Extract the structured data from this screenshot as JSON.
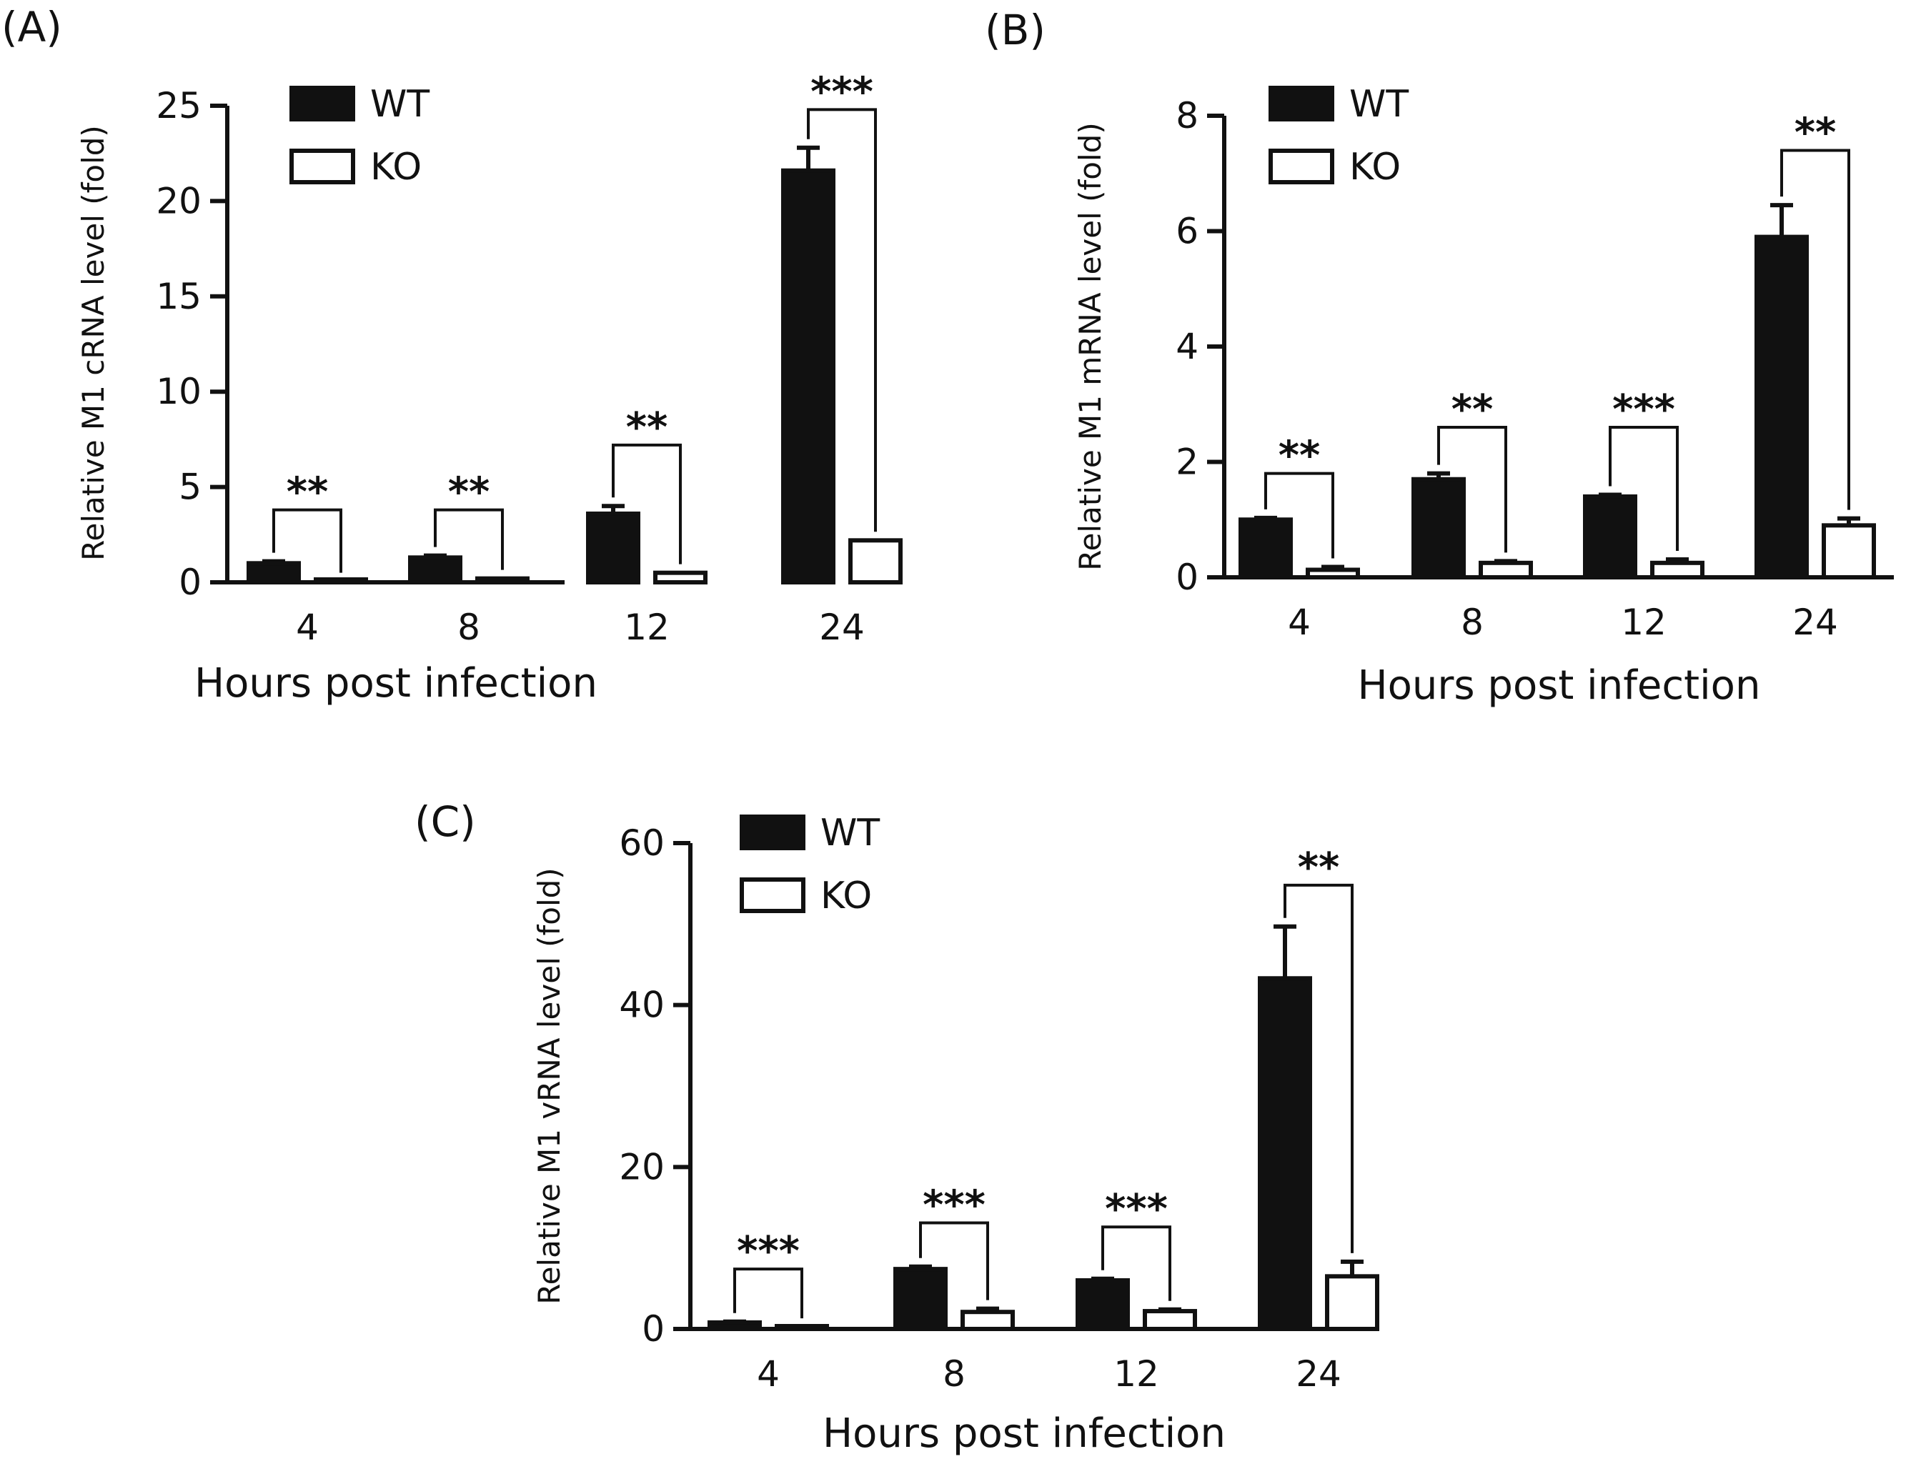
{
  "chart_data": [
    {
      "panel": "(A)",
      "type": "bar",
      "categories": [
        "4",
        "8",
        "12",
        "24"
      ],
      "xlabel": "Hours post infection",
      "ylabel": "Relative M1 cRNA level (fold)",
      "ylim": [
        0,
        25
      ],
      "yticks": [
        "0",
        "5",
        "10",
        "15",
        "20",
        "25"
      ],
      "legend_position": "top-left",
      "series": [
        {
          "name": "WT",
          "values": [
            1.0,
            1.3,
            3.6,
            21.6
          ],
          "errors": [
            0.1,
            0.1,
            0.4,
            1.2
          ],
          "color": "#111111"
        },
        {
          "name": "KO",
          "values": [
            0.05,
            0.2,
            0.5,
            2.2
          ],
          "errors": [
            0.0,
            0.0,
            0.0,
            0.0
          ],
          "color": "#ffffff"
        }
      ],
      "significance": [
        "**",
        "**",
        "**",
        "***"
      ],
      "bracket_heights": [
        3.8,
        3.8,
        7.2,
        24.8
      ]
    },
    {
      "panel": "(B)",
      "type": "bar",
      "categories": [
        "4",
        "8",
        "12",
        "24"
      ],
      "xlabel": "Hours post infection",
      "ylabel": "Relative M1 mRNA level (fold)",
      "ylim": [
        0,
        8
      ],
      "yticks": [
        "0",
        "2",
        "4",
        "6",
        "8"
      ],
      "legend_position": "top-left",
      "series": [
        {
          "name": "WT",
          "values": [
            1.0,
            1.7,
            1.4,
            5.9
          ],
          "errors": [
            0.03,
            0.1,
            0.03,
            0.55
          ],
          "color": "#111111"
        },
        {
          "name": "KO",
          "values": [
            0.13,
            0.25,
            0.25,
            0.9
          ],
          "errors": [
            0.05,
            0.03,
            0.06,
            0.12
          ],
          "color": "#ffffff"
        }
      ],
      "significance": [
        "**",
        "**",
        "***",
        "**"
      ],
      "bracket_heights": [
        1.8,
        2.6,
        2.6,
        7.4
      ]
    },
    {
      "panel": "(C)",
      "type": "bar",
      "categories": [
        "4",
        "8",
        "12",
        "24"
      ],
      "xlabel": "Hours post infection",
      "ylabel": "Relative M1 vRNA level (fold)",
      "ylim": [
        0,
        60
      ],
      "yticks": [
        "0",
        "20",
        "40",
        "60"
      ],
      "legend_position": "top-left",
      "series": [
        {
          "name": "WT",
          "values": [
            0.8,
            7.4,
            6.0,
            43.3
          ],
          "errors": [
            0.1,
            0.3,
            0.2,
            6.4
          ],
          "color": "#111111"
        },
        {
          "name": "KO",
          "values": [
            0.2,
            2.1,
            2.2,
            6.5
          ],
          "errors": [
            0.05,
            0.4,
            0.2,
            1.8
          ],
          "color": "#ffffff"
        }
      ],
      "significance": [
        "***",
        "***",
        "***",
        "**"
      ],
      "bracket_heights": [
        7.4,
        13.1,
        12.6,
        54.8
      ]
    }
  ]
}
